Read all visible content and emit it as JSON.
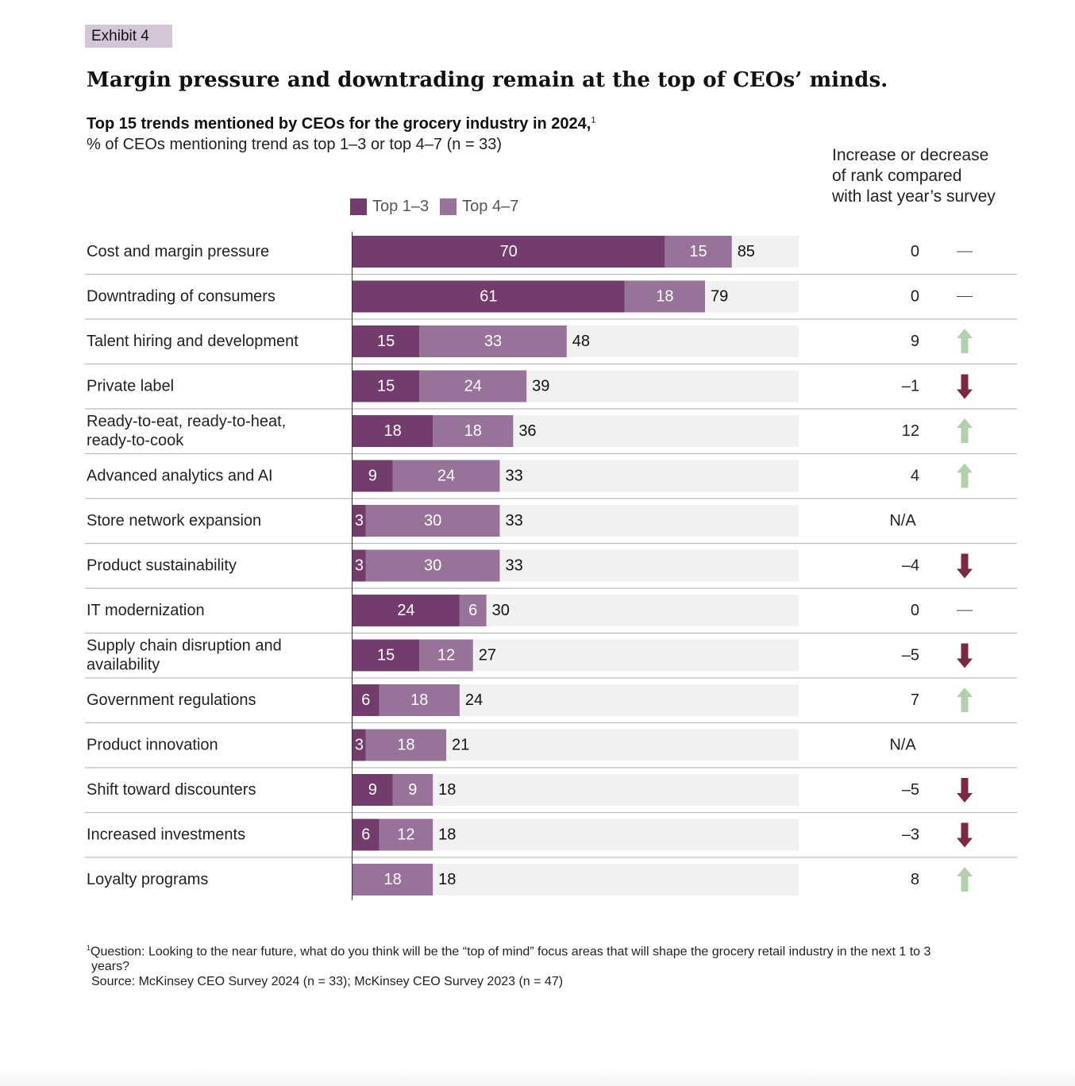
{
  "exhibit_label": "Exhibit 4",
  "headline": "Margin pressure and downtrading remain at the top of CEOs’ minds.",
  "subtitle": "Top 15 trends mentioned by CEOs for the grocery industry in 2024,",
  "subtitle_footnote_mark": "1",
  "subtitle2": "% of CEOs mentioning trend as top 1–3 or top 4–7 (n = 33)",
  "rank_header": [
    "Increase or decrease",
    "of rank compared",
    "with last year’s survey"
  ],
  "colors": {
    "top13": "#723d6c",
    "top47": "#977299",
    "track": "#f1f1f1",
    "up_arrow": "#b4cfae",
    "down_arrow": "#7a2847",
    "divider": "#bdbdbd"
  },
  "chart_data": {
    "type": "bar",
    "orientation": "horizontal",
    "stacked": true,
    "title": "Top 15 trends mentioned by CEOs for the grocery industry in 2024",
    "xlabel": "% of CEOs mentioning trend as top 1–3 or top 4–7 (n = 33)",
    "xlim": [
      0,
      100
    ],
    "legend": {
      "position": "top",
      "entries": [
        "Top 1–3",
        "Top 4–7"
      ]
    },
    "categories": [
      "Cost and margin pressure",
      "Downtrading of consumers",
      "Talent hiring and development",
      "Private label",
      "Ready-to-eat, ready-to-heat, ready-to-cook",
      "Advanced analytics and AI",
      "Store network expansion",
      "Product sustainability",
      "IT modernization",
      "Supply chain disruption and availability",
      "Government regulations",
      "Product innovation",
      "Shift toward discounters",
      "Increased investments",
      "Loyalty programs"
    ],
    "category_lines": [
      [
        "Cost and margin pressure"
      ],
      [
        "Downtrading of consumers"
      ],
      [
        "Talent hiring and development"
      ],
      [
        "Private label"
      ],
      [
        "Ready-to-eat, ready-to-heat,",
        "ready-to-cook"
      ],
      [
        "Advanced analytics and AI"
      ],
      [
        "Store network expansion"
      ],
      [
        "Product sustainability"
      ],
      [
        "IT modernization"
      ],
      [
        "Supply chain disruption and",
        "availability"
      ],
      [
        "Government regulations"
      ],
      [
        "Product innovation"
      ],
      [
        "Shift toward discounters"
      ],
      [
        "Increased investments"
      ],
      [
        "Loyalty programs"
      ]
    ],
    "series": [
      {
        "name": "Top 1–3",
        "values": [
          70,
          61,
          15,
          15,
          18,
          9,
          3,
          3,
          24,
          15,
          6,
          3,
          9,
          6,
          0
        ]
      },
      {
        "name": "Top 4–7",
        "values": [
          15,
          18,
          33,
          24,
          18,
          24,
          30,
          30,
          6,
          12,
          18,
          18,
          9,
          12,
          18
        ]
      }
    ],
    "totals": [
      85,
      79,
      48,
      39,
      36,
      33,
      33,
      33,
      30,
      27,
      24,
      21,
      18,
      18,
      18
    ],
    "rank_change": [
      "0",
      "0",
      "9",
      "–1",
      "12",
      "4",
      "N/A",
      "–4",
      "0",
      "–5",
      "7",
      "N/A",
      "–5",
      "–3",
      "8"
    ],
    "rank_direction": [
      "flat",
      "flat",
      "up",
      "down",
      "up",
      "up",
      "none",
      "down",
      "flat",
      "down",
      "up",
      "none",
      "down",
      "down",
      "up"
    ]
  },
  "footnote": {
    "mark": "1",
    "question": "Question: Looking to the near future, what do you think will be the “top of mind” focus areas that will shape the grocery retail industry in the next 1 to 3",
    "question_cont": "years?",
    "source": "Source: McKinsey CEO Survey 2024 (n = 33); McKinsey CEO Survey 2023 (n = 47)"
  }
}
